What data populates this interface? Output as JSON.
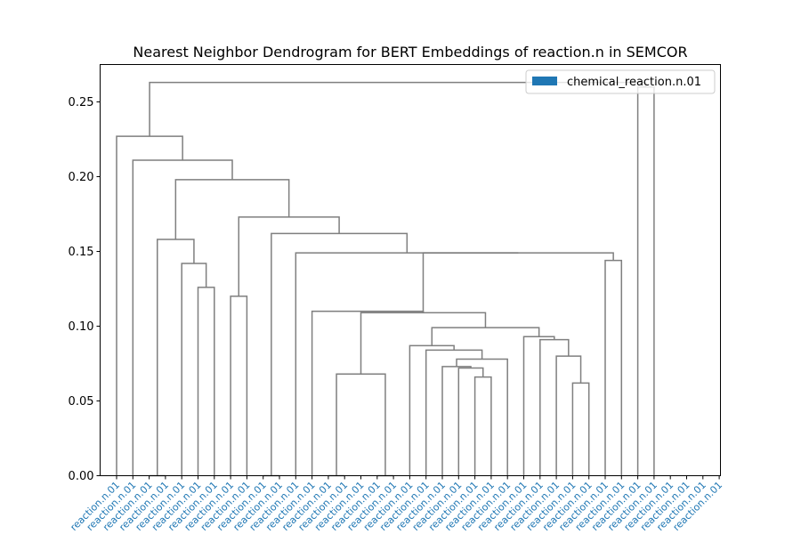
{
  "chart_data": {
    "type": "dendrogram",
    "title": "Nearest Neighbor Dendrogram for BERT Embeddings of reaction.n in SEMCOR",
    "xlabel": "",
    "ylabel": "",
    "ylim": [
      0,
      0.275
    ],
    "yticks": [
      0.0,
      0.05,
      0.1,
      0.15,
      0.2,
      0.25
    ],
    "ytick_labels": [
      "0.00",
      "0.05",
      "0.10",
      "0.15",
      "0.20",
      "0.25"
    ],
    "grid": false,
    "link_color": "#7f7f7f",
    "legend": {
      "position": "top-right",
      "entries": [
        {
          "label": "chemical_reaction.n.01",
          "color": "#1f77b4"
        }
      ]
    },
    "leaf_label_color": "#1f77b4",
    "leaves": [
      "reaction.n.01",
      "reaction.n.01",
      "reaction.n.01",
      "reaction.n.01",
      "reaction.n.01",
      "reaction.n.01",
      "reaction.n.01",
      "reaction.n.01",
      "reaction.n.01",
      "reaction.n.01",
      "reaction.n.01",
      "reaction.n.01",
      "reaction.n.01",
      "reaction.n.01",
      "reaction.n.01",
      "reaction.n.01",
      "reaction.n.01",
      "reaction.n.01",
      "reaction.n.01",
      "reaction.n.01",
      "reaction.n.01",
      "reaction.n.01",
      "reaction.n.01",
      "reaction.n.01",
      "reaction.n.01",
      "reaction.n.01",
      "reaction.n.01",
      "reaction.n.01",
      "reaction.n.01",
      "reaction.n.01",
      "reaction.n.01",
      "reaction.n.01",
      "reaction.n.01",
      "reaction.n.01",
      "reaction.n.01",
      "reaction.n.01",
      "reaction.n.01",
      "reaction.n.01"
    ],
    "merges": [
      {
        "a": 2,
        "b": 3,
        "height": 0.0
      },
      {
        "a": 5,
        "b": 6,
        "height": 0.126
      },
      {
        "a": 4,
        "b": 39,
        "height": 0.142
      },
      {
        "a": 38,
        "b": 40,
        "height": 0.158
      },
      {
        "a": 7,
        "b": 8,
        "height": 0.12
      },
      {
        "a": 9,
        "b": 10,
        "height": 0.0
      },
      {
        "a": 13,
        "b": 14,
        "height": 0.0
      },
      {
        "a": 16,
        "b": 17,
        "height": 0.0
      },
      {
        "a": 44,
        "b": 45,
        "height": 0.068
      },
      {
        "a": 22,
        "b": 23,
        "height": 0.066
      },
      {
        "a": 21,
        "b": 47,
        "height": 0.072
      },
      {
        "a": 20,
        "b": 48,
        "height": 0.073
      },
      {
        "a": 24,
        "b": 49,
        "height": 0.078
      },
      {
        "a": 19,
        "b": 50,
        "height": 0.084
      },
      {
        "a": 18,
        "b": 51,
        "height": 0.087
      },
      {
        "a": 28,
        "b": 29,
        "height": 0.062
      },
      {
        "a": 27,
        "b": 53,
        "height": 0.08
      },
      {
        "a": 26,
        "b": 54,
        "height": 0.091
      },
      {
        "a": 25,
        "b": 55,
        "height": 0.093
      },
      {
        "a": 52,
        "b": 56,
        "height": 0.099
      },
      {
        "a": 46,
        "b": 57,
        "height": 0.109
      },
      {
        "a": 12,
        "b": 58,
        "height": 0.11
      },
      {
        "a": 30,
        "b": 31,
        "height": 0.144
      },
      {
        "a": 58,
        "b": 60,
        "height": 0.149
      },
      {
        "a": 11,
        "b": 61,
        "height": 0.149
      },
      {
        "a": 43,
        "b": 62,
        "height": 0.162
      },
      {
        "a": 42,
        "b": 63,
        "height": 0.173
      },
      {
        "a": 41,
        "b": 64,
        "height": 0.198
      },
      {
        "a": 1,
        "b": 65,
        "height": 0.211
      },
      {
        "a": 0,
        "b": 66,
        "height": 0.227
      },
      {
        "a": 32,
        "b": 33,
        "height": 0.26
      },
      {
        "a": 67,
        "b": 68,
        "height": 0.263
      }
    ]
  }
}
